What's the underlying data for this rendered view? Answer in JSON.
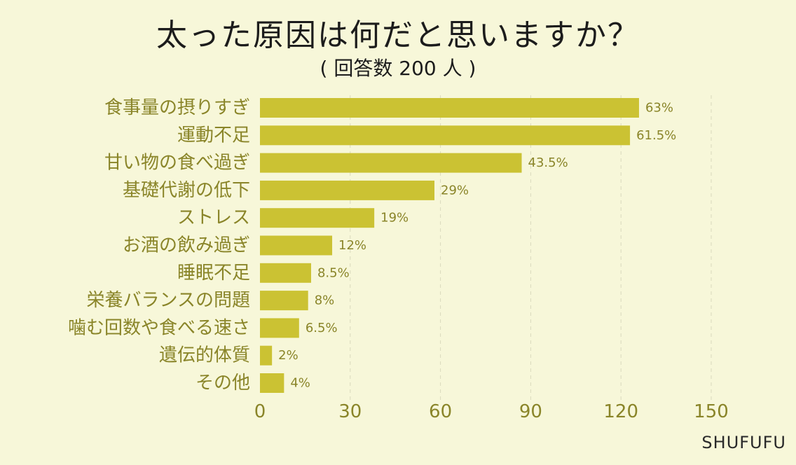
{
  "chart_data": {
    "type": "bar",
    "orientation": "horizontal",
    "title": "太った原因は何だと思いますか？",
    "subtitle": "( 回答数 200 人 )",
    "categories": [
      "食事量の摂りすぎ",
      "運動不足",
      "甘い物の食べ過ぎ",
      "基礎代謝の低下",
      "ストレス",
      "お酒の飲み過ぎ",
      "睡眠不足",
      "栄養バランスの問題",
      "噛む回数や食べる速さ",
      "遺伝的体質",
      "その他"
    ],
    "values": [
      126,
      123,
      87,
      58,
      38,
      24,
      17,
      16,
      13,
      4,
      8
    ],
    "value_labels": [
      "63%",
      "61.5%",
      "43.5%",
      "29%",
      "19%",
      "12%",
      "8.5%",
      "8%",
      "6.5%",
      "2%",
      "4%"
    ],
    "xlim": [
      0,
      150
    ],
    "xticks": [
      0,
      30,
      60,
      90,
      120,
      150
    ],
    "grid": true,
    "bar_color": "#cbc233",
    "text_color": "#8a8529"
  },
  "brand": "SHUFUFU"
}
